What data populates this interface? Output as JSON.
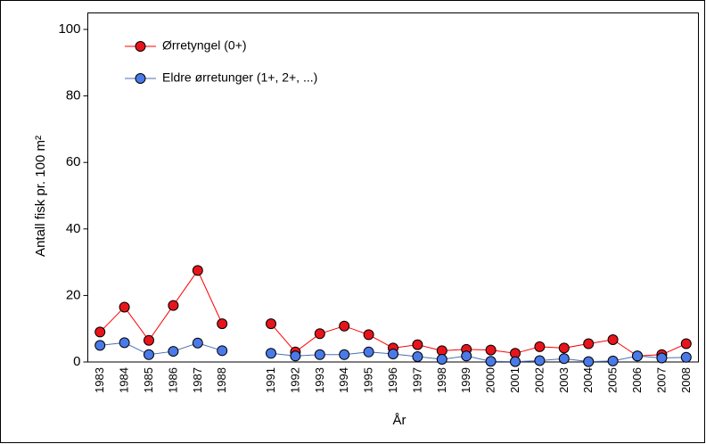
{
  "chart_data": {
    "type": "line",
    "x_label": "År",
    "y_label": "Antall fisk pr. 100 m²",
    "categories": [
      "1983",
      "1984",
      "1985",
      "1986",
      "1987",
      "1988",
      null,
      "1991",
      "1992",
      "1993",
      "1994",
      "1995",
      "1996",
      "1997",
      "1998",
      "1999",
      "2000",
      "2001",
      "2002",
      "2003",
      "2004",
      "2005",
      "2006",
      "2007",
      "2008"
    ],
    "series": [
      {
        "name": "Ørretyngel (0+)",
        "color": "#ff0000",
        "marker_color": "#e8141b",
        "values": [
          9,
          16.5,
          6.5,
          17,
          27.5,
          11.5,
          null,
          11.5,
          3,
          8.5,
          10.8,
          8.2,
          4.2,
          5.2,
          3.4,
          3.8,
          3.6,
          2.6,
          4.6,
          4.2,
          5.5,
          6.7,
          1.8,
          2.2,
          5.5
        ]
      },
      {
        "name": "Eldre ørretunger (1+, 2+, ...)",
        "color": "#4a6fb5",
        "marker_color": "#4a7ae8",
        "values": [
          5,
          5.8,
          2.2,
          3.2,
          5.7,
          3.4,
          null,
          2.6,
          1.8,
          2.2,
          2.2,
          3,
          2.4,
          1.6,
          0.8,
          1.8,
          0.2,
          0.1,
          0.4,
          1.0,
          0.1,
          0.3,
          1.8,
          1.2,
          1.4
        ]
      }
    ],
    "ylim": [
      0,
      100
    ],
    "yticks": [
      0,
      20,
      40,
      60,
      80,
      100
    ],
    "grid": false,
    "legend": "top-left"
  }
}
